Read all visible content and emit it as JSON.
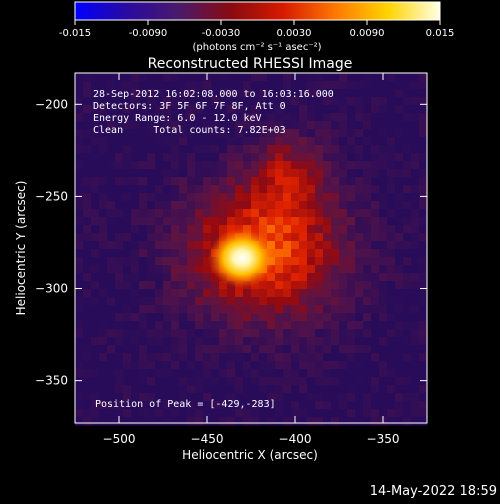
{
  "colorbar": {
    "tick_labels": [
      "-0.015",
      "-0.0090",
      "-0.0030",
      "0.0030",
      "0.0090",
      "0.015"
    ],
    "units_label": "(photons cm⁻² s⁻¹ asec⁻²)",
    "range": [
      -0.015,
      0.015
    ],
    "colors": [
      "#0000ff",
      "#2a0aa0",
      "#4a1a6a",
      "#8a0a10",
      "#d81a00",
      "#ff7800",
      "#ffd400",
      "#ffffe6"
    ]
  },
  "chart_data": {
    "type": "heatmap",
    "title": "Reconstructed RHESSI Image",
    "xlabel": "Heliocentric X (arcsec)",
    "ylabel": "Heliocentric Y (arcsec)",
    "xlim": [
      -525,
      -325
    ],
    "ylim": [
      -373,
      -183
    ],
    "x_ticks": [
      -500,
      -450,
      -400,
      -350
    ],
    "x_tick_labels": [
      "−500",
      "−450",
      "−400",
      "−350"
    ],
    "y_ticks": [
      -200,
      -250,
      -300,
      -350
    ],
    "y_tick_labels": [
      "−200",
      "−250",
      "−300",
      "−350"
    ],
    "peak_position": [
      -429,
      -283
    ],
    "annotations": [
      "28-Sep-2012 16:02:08.000 to 16:03:16.000",
      "Detectors: 3F 5F 6F 7F 8F, Att 0",
      "Energy Range: 6.0 - 12.0 keV",
      "Clean     Total counts: 7.82E+03"
    ],
    "peak_label": "Position of Peak = [-429,-283]"
  },
  "footer": {
    "timestamp": "14-May-2022 18:59"
  }
}
